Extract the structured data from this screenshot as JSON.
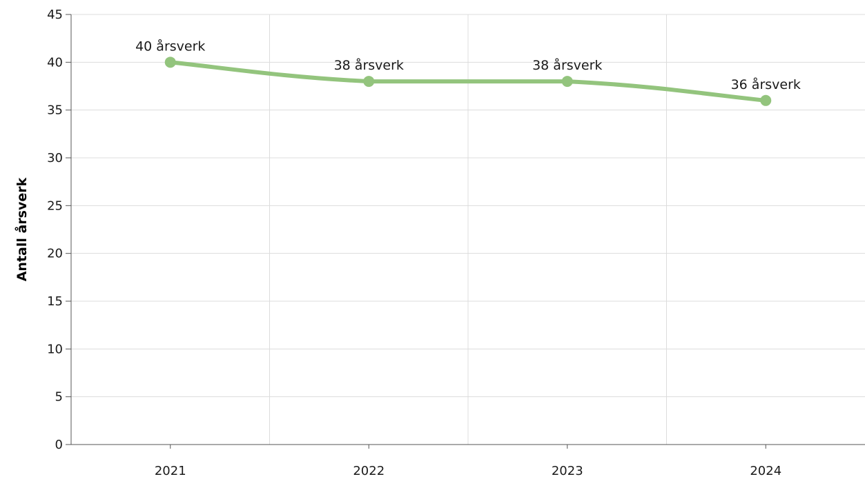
{
  "chart_data": {
    "type": "line",
    "categories": [
      "2021",
      "2022",
      "2023",
      "2024"
    ],
    "series": [
      {
        "values": [
          40,
          38,
          38,
          36
        ],
        "labels": [
          "40 årsverk",
          "38 årsverk",
          "38 årsverk",
          "36 årsverk"
        ],
        "color": "#93c47d"
      }
    ],
    "xlabel": "",
    "ylabel": "Antall årsverk",
    "ylim": [
      0,
      45
    ],
    "yticks": [
      "0",
      "5",
      "10",
      "15",
      "20",
      "25",
      "30",
      "35",
      "40",
      "45"
    ],
    "grid": true,
    "smooth": true
  }
}
